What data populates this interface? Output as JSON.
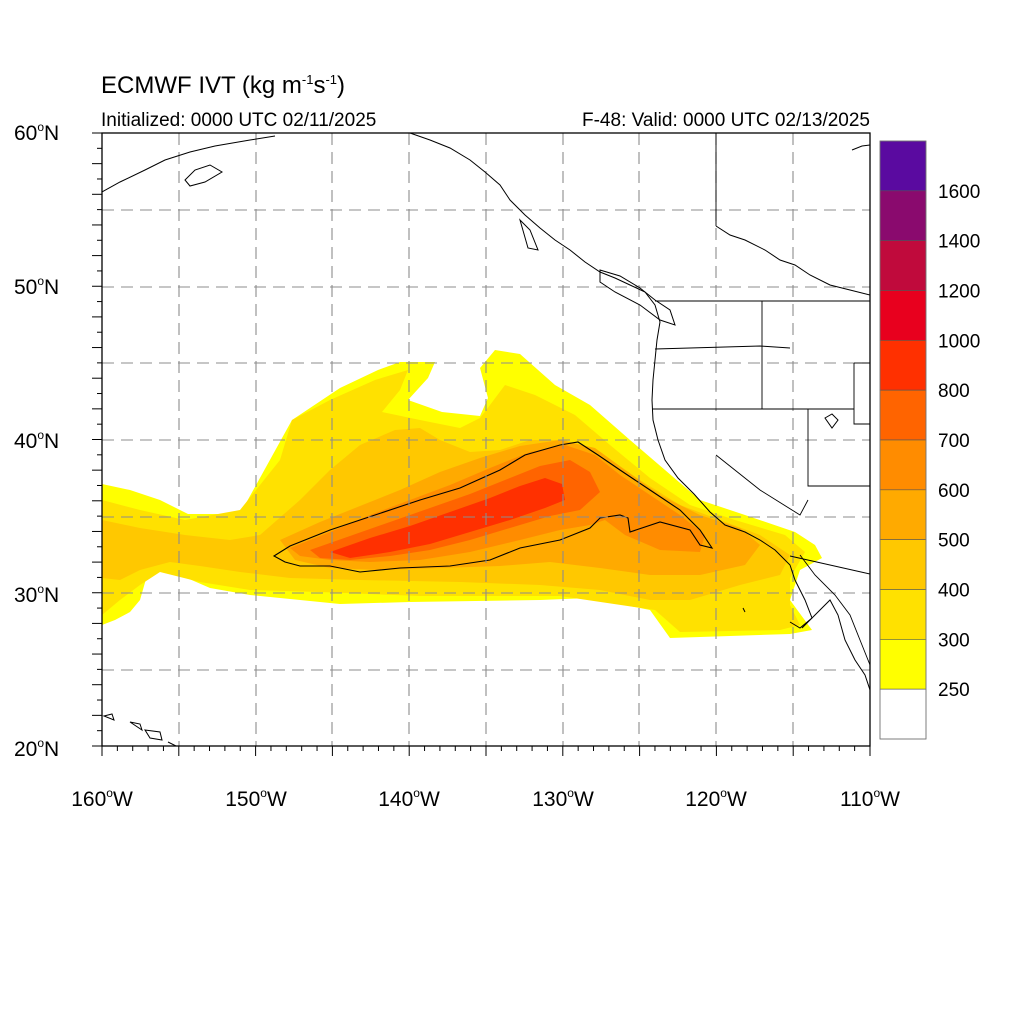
{
  "header": {
    "title_main": "ECMWF IVT (kg m",
    "title_exp1": "-1",
    "title_mid": "s",
    "title_exp2": "-1",
    "title_end": ")",
    "initialized": "Initialized: 0000 UTC 02/11/2025",
    "valid": "F-48: Valid: 0000 UTC 02/13/2025"
  },
  "axes": {
    "deg_symbol": "o",
    "lat_labels": [
      {
        "num": "60",
        "hemi": "N"
      },
      {
        "num": "50",
        "hemi": "N"
      },
      {
        "num": "40",
        "hemi": "N"
      },
      {
        "num": "30",
        "hemi": "N"
      },
      {
        "num": "20",
        "hemi": "N"
      }
    ],
    "lon_labels": [
      {
        "num": "160",
        "hemi": "W"
      },
      {
        "num": "150",
        "hemi": "W"
      },
      {
        "num": "140",
        "hemi": "W"
      },
      {
        "num": "130",
        "hemi": "W"
      },
      {
        "num": "120",
        "hemi": "W"
      },
      {
        "num": "110",
        "hemi": "W"
      }
    ]
  },
  "colorbar": {
    "labels": [
      "1600",
      "1400",
      "1200",
      "1000",
      "800",
      "700",
      "600",
      "500",
      "400",
      "300",
      "250"
    ],
    "colors": [
      "#5a0aa0",
      "#8a0a6e",
      "#c00a3c",
      "#e8001e",
      "#ff3000",
      "#ff6400",
      "#ff8c00",
      "#ffaa00",
      "#ffc800",
      "#ffe100",
      "#ffff00",
      "#ffffff"
    ]
  }
}
